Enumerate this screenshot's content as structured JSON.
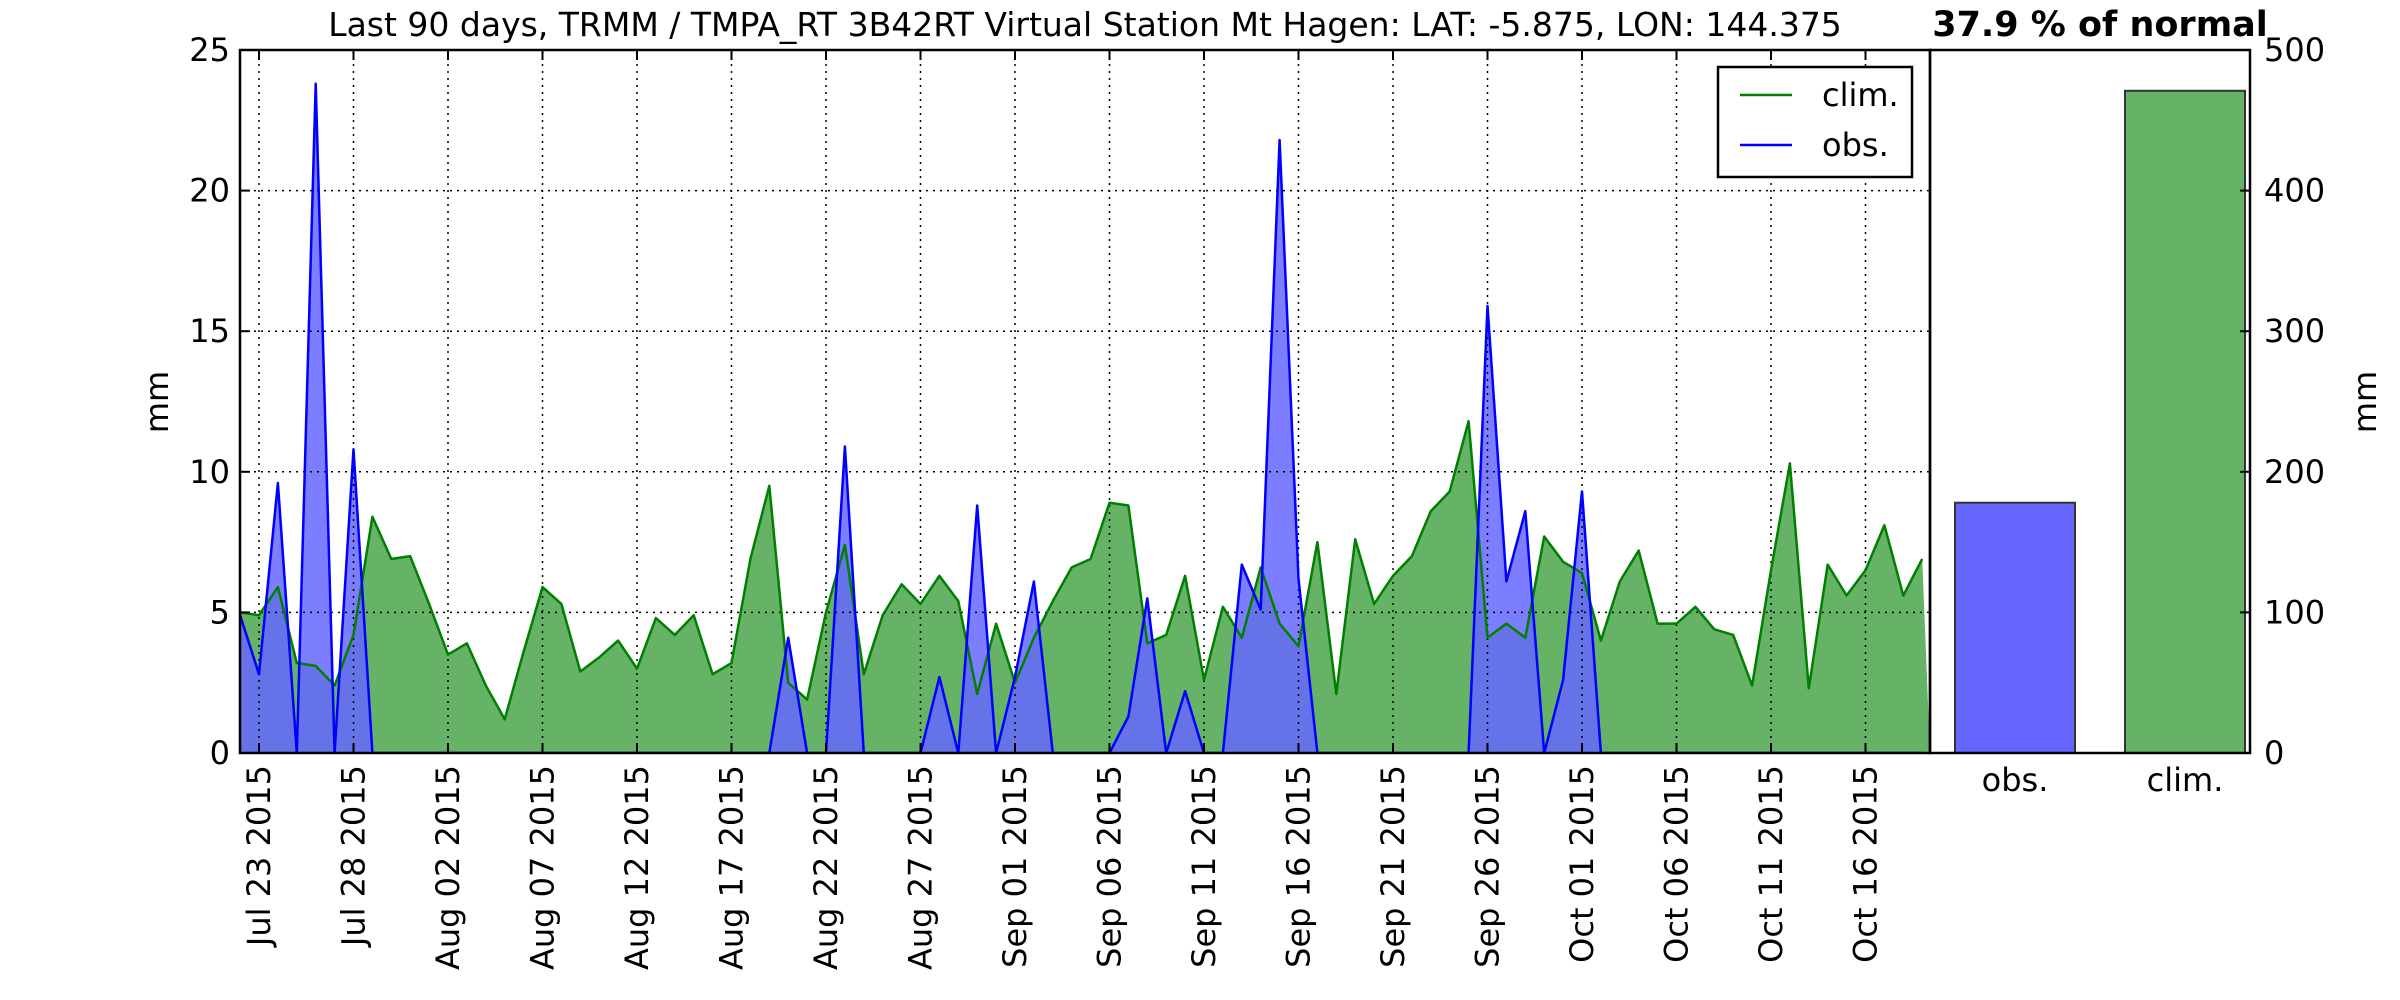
{
  "title": "Last 90 days, TRMM / TMPA_RT 3B42RT Virtual Station Mt Hagen: LAT: -5.875, LON: 144.375",
  "percent_label": "37.9 % of normal",
  "colors": {
    "obs": "#0000ff",
    "clim": "#008000",
    "obs_fill": "#6666ff",
    "clim_fill": "#66b266"
  },
  "chart_data": [
    {
      "type": "area",
      "ylabel": "mm",
      "ylim": [
        0,
        25
      ],
      "yticks": [
        0,
        5,
        10,
        15,
        20,
        25
      ],
      "xlim": [
        "2015-07-23",
        "2015-10-20"
      ],
      "xtick_labels": [
        "Jul 23 2015",
        "Jul 28 2015",
        "Aug 02 2015",
        "Aug 07 2015",
        "Aug 12 2015",
        "Aug 17 2015",
        "Aug 22 2015",
        "Aug 27 2015",
        "Sep 01 2015",
        "Sep 06 2015",
        "Sep 11 2015",
        "Sep 16 2015",
        "Sep 21 2015",
        "Sep 26 2015",
        "Oct 01 2015",
        "Oct 06 2015",
        "Oct 11 2015",
        "Oct 16 2015"
      ],
      "grid": true,
      "legend": {
        "position": "top-right",
        "entries": [
          "clim.",
          "obs."
        ]
      },
      "x_start": "2015-07-22",
      "series": [
        {
          "name": "clim.",
          "values": [
            5.0,
            4.9,
            5.9,
            3.2,
            3.1,
            2.4,
            4.2,
            8.4,
            6.9,
            7.0,
            5.3,
            3.5,
            3.9,
            2.4,
            1.2,
            3.6,
            5.9,
            5.3,
            2.9,
            3.4,
            4.0,
            3.0,
            4.8,
            4.2,
            4.9,
            2.8,
            3.2,
            6.9,
            9.5,
            2.5,
            1.9,
            5.0,
            7.4,
            2.8,
            4.9,
            6.0,
            5.3,
            6.3,
            5.4,
            2.1,
            4.6,
            2.5,
            4.1,
            5.4,
            6.6,
            6.9,
            8.9,
            8.8,
            3.9,
            4.2,
            6.3,
            2.6,
            5.2,
            4.1,
            6.6,
            4.6,
            3.8,
            7.5,
            2.1,
            7.6,
            5.3,
            6.3,
            7.0,
            8.6,
            9.3,
            11.8,
            4.1,
            4.6,
            4.1,
            7.7,
            6.8,
            6.4,
            4.0,
            6.1,
            7.2,
            4.6,
            4.6,
            5.2,
            4.4,
            4.2,
            2.4,
            6.5,
            10.3,
            2.3,
            6.7,
            5.6,
            6.5,
            8.1,
            5.6,
            6.9
          ]
        },
        {
          "name": "obs.",
          "values": [
            4.9,
            2.8,
            9.6,
            0,
            23.8,
            0,
            10.8,
            0,
            0,
            0,
            0,
            0,
            0,
            0,
            0,
            0,
            0,
            0,
            0,
            0,
            0,
            0,
            0,
            0,
            0,
            0,
            0,
            0,
            0,
            4.1,
            0,
            0,
            10.9,
            0,
            0,
            0,
            0,
            2.7,
            0,
            8.8,
            0,
            2.7,
            6.1,
            0,
            0,
            0,
            0,
            1.3,
            5.5,
            0,
            2.2,
            0,
            0,
            6.7,
            5.1,
            21.8,
            6.2,
            0,
            0,
            0,
            0,
            0,
            0,
            0,
            0,
            0,
            15.9,
            6.1,
            8.6,
            0,
            2.6,
            9.3,
            0,
            0,
            0,
            0,
            0,
            0,
            0,
            0,
            0,
            0,
            0,
            0,
            0,
            0,
            0,
            0,
            0,
            0
          ]
        }
      ]
    },
    {
      "type": "bar",
      "ylabel": "mm",
      "ylim": [
        0,
        500
      ],
      "yticks": [
        0,
        100,
        200,
        300,
        400,
        500
      ],
      "categories": [
        "obs.",
        "clim."
      ],
      "values": [
        178,
        471
      ]
    }
  ]
}
